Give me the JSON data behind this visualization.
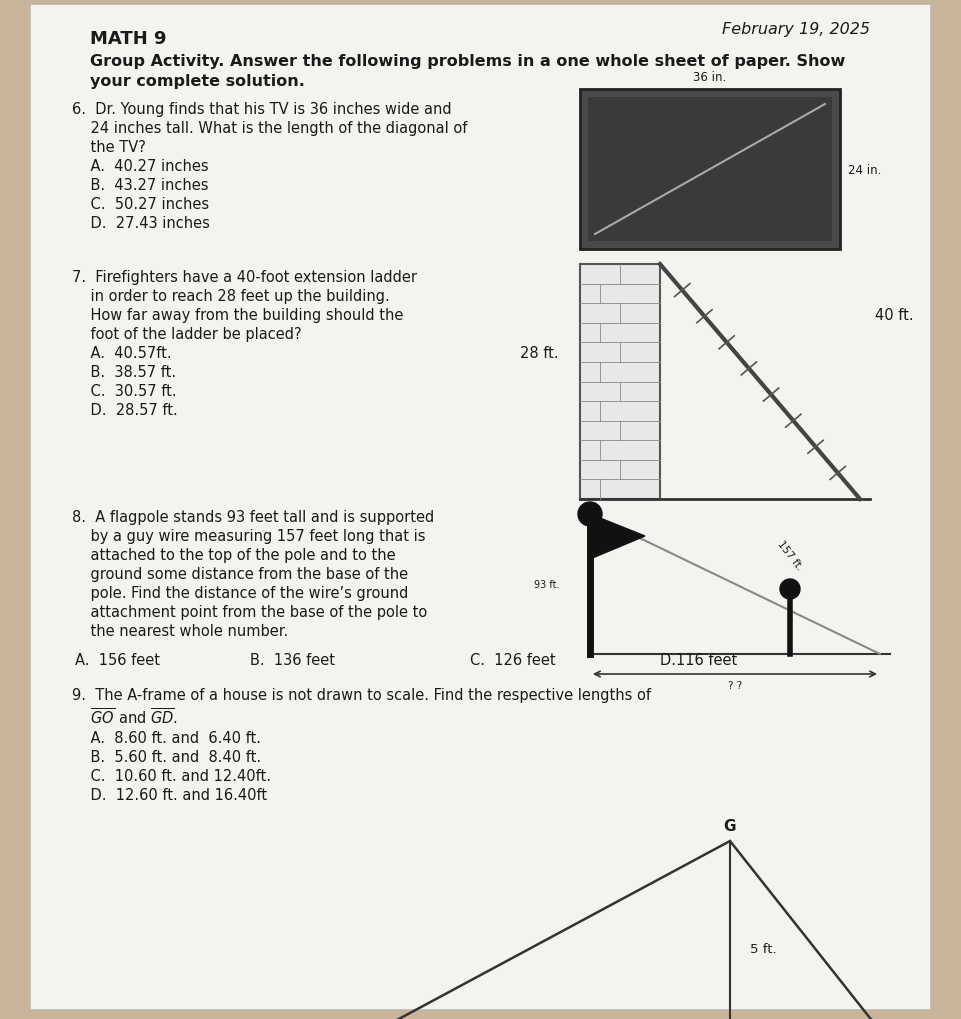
{
  "title": "MATH 9",
  "date": "February 19, 2025",
  "bg_color": "#c8b49a",
  "paper_color": "#f5f3ef",
  "text_color": "#1a1a1a",
  "q6_lines": [
    "6.  Dr. Young finds that his TV is 36 inches wide and",
    "    24 inches tall. What is the length of the diagonal of",
    "    the TV?",
    "    A.  40.27 inches",
    "    B.  43.27 inches",
    "    C.  50.27 inches",
    "    D.  27.43 inches"
  ],
  "q7_lines": [
    "7.  Firefighters have a 40-foot extension ladder",
    "    in order to reach 28 feet up the building.",
    "    How far away from the building should the",
    "    foot of the ladder be placed?",
    "    A.  40.57ft.",
    "    B.  38.57 ft.",
    "    C.  30.57 ft.",
    "    D.  28.57 ft."
  ],
  "q8_lines": [
    "8.  A flagpole stands 93 feet tall and is supported",
    "    by a guy wire measuring 157 feet long that is",
    "    attached to the top of the pole and to the",
    "    ground some distance from the base of the",
    "    pole. Find the distance of the wire’s ground",
    "    attachment point from the base of the pole to",
    "    the nearest whole number."
  ],
  "q8_choices_items": [
    "A.  156 feet",
    "B.  136 feet",
    "C.  126 feet",
    "D.116 feet"
  ],
  "q9_line1": "9.  The A-frame of a house is not drawn to scale. Find the respective lengths of",
  "q9_line2": "    and     .",
  "q9_choices": [
    "    A.  8.60 ft. and  6.40 ft.",
    "    B.  5.60 ft. and  8.40 ft.",
    "    C.  10.60 ft. and 12.40ft.",
    "    D.  12.60 ft. and 16.40ft"
  ]
}
